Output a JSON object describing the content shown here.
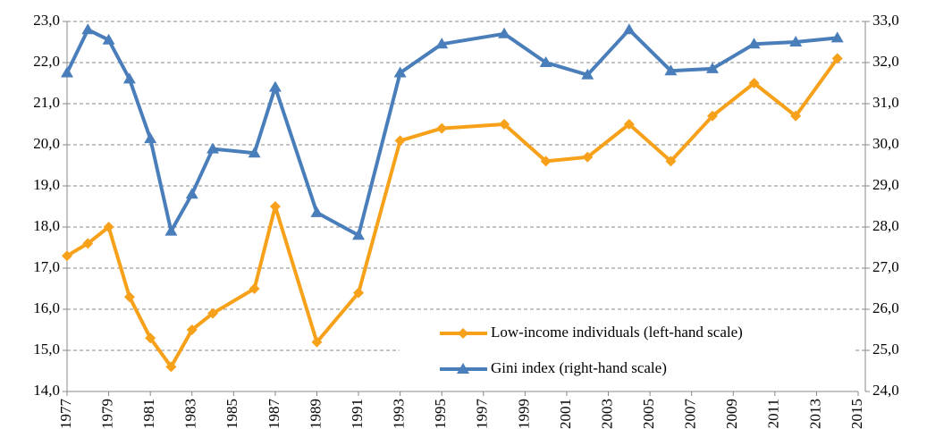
{
  "chart_data": {
    "type": "line",
    "x": [
      1977,
      1978,
      1979,
      1980,
      1981,
      1982,
      1983,
      1984,
      1986,
      1987,
      1989,
      1991,
      1993,
      1995,
      1998,
      2000,
      2002,
      2004,
      2006,
      2008,
      2010,
      2012,
      2014
    ],
    "series": [
      {
        "name": "Low-income individuals (left-hand scale)",
        "color": "#f7a11a",
        "marker": "diamond",
        "axis": "y",
        "values": [
          17.3,
          17.6,
          18.0,
          16.3,
          15.3,
          14.6,
          15.5,
          15.9,
          16.5,
          18.5,
          15.2,
          16.4,
          20.1,
          20.4,
          20.5,
          19.6,
          19.7,
          20.5,
          19.6,
          20.7,
          21.5,
          20.7,
          22.1
        ]
      },
      {
        "name": "Gini index (right-hand scale)",
        "color": "#4a7ebb",
        "marker": "triangle",
        "axis": "y2",
        "values": [
          31.75,
          32.8,
          32.55,
          31.6,
          30.15,
          27.9,
          28.8,
          29.9,
          29.8,
          31.4,
          28.35,
          27.8,
          31.75,
          32.45,
          32.7,
          32.0,
          31.7,
          32.8,
          31.8,
          31.85,
          32.45,
          32.5,
          32.6
        ]
      }
    ],
    "xlim": [
      1977,
      2015
    ],
    "xticks": [
      1977,
      1979,
      1981,
      1983,
      1985,
      1987,
      1989,
      1991,
      1993,
      1995,
      1997,
      1999,
      2001,
      2003,
      2005,
      2007,
      2009,
      2011,
      2013,
      2015
    ],
    "ylim": [
      14,
      23
    ],
    "yticks": [
      {
        "value": 14,
        "label": "14,0"
      },
      {
        "value": 15,
        "label": "15,0"
      },
      {
        "value": 16,
        "label": "16,0"
      },
      {
        "value": 17,
        "label": "17,0"
      },
      {
        "value": 18,
        "label": "18,0"
      },
      {
        "value": 19,
        "label": "19,0"
      },
      {
        "value": 20,
        "label": "20,0"
      },
      {
        "value": 21,
        "label": "21,0"
      },
      {
        "value": 22,
        "label": "22,0"
      },
      {
        "value": 23,
        "label": "23,0"
      }
    ],
    "y2lim": [
      24,
      33
    ],
    "y2ticks": [
      {
        "value": 24,
        "label": "24,0"
      },
      {
        "value": 25,
        "label": "25,0"
      },
      {
        "value": 26,
        "label": "26,0"
      },
      {
        "value": 27,
        "label": "27,0"
      },
      {
        "value": 28,
        "label": "28,0"
      },
      {
        "value": 29,
        "label": "29,0"
      },
      {
        "value": 30,
        "label": "30,0"
      },
      {
        "value": 31,
        "label": "31,0"
      },
      {
        "value": 32,
        "label": "32,0"
      },
      {
        "value": 33,
        "label": "33,0"
      }
    ],
    "grid": true,
    "legend": "lower right"
  }
}
